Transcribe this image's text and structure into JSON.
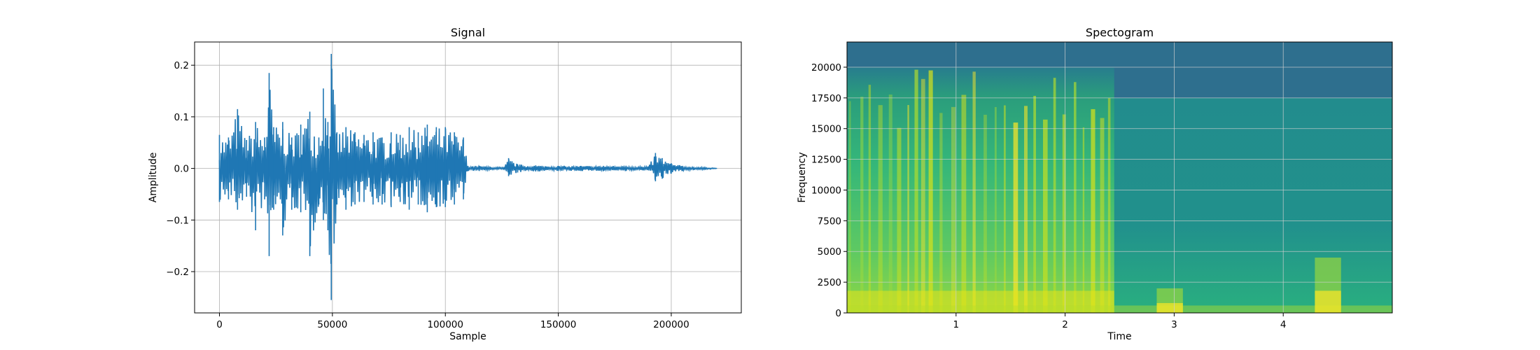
{
  "chart_data": [
    {
      "type": "line",
      "title": "Signal",
      "xlabel": "Sample",
      "ylabel": "Amplitude",
      "xlim": [
        -11000,
        231000
      ],
      "ylim": [
        -0.28,
        0.245
      ],
      "grid": true,
      "line_color": "#1f77b4",
      "x_ticks": [
        0,
        50000,
        100000,
        150000,
        200000
      ],
      "x_tick_labels": [
        "0",
        "50000",
        "100000",
        "150000",
        "200000"
      ],
      "y_ticks": [
        -0.2,
        -0.1,
        0.0,
        0.1,
        0.2
      ],
      "y_tick_labels": [
        "−0.2",
        "−0.1",
        "0.0",
        "0.1",
        "0.2"
      ],
      "envelope": {
        "x": [
          0,
          4000,
          8000,
          12000,
          16000,
          20000,
          22000,
          24000,
          28000,
          32000,
          36000,
          40000,
          44000,
          46000,
          48000,
          49500,
          52000,
          56000,
          60000,
          64000,
          68000,
          72000,
          76000,
          80000,
          84000,
          88000,
          92000,
          96000,
          100000,
          104000,
          108000,
          110000,
          115000,
          120000,
          126000,
          128000,
          132000,
          140000,
          150000,
          160000,
          170000,
          180000,
          190000,
          193000,
          196000,
          200000,
          205000,
          210000,
          215000,
          220000
        ],
        "max": [
          0.065,
          0.06,
          0.115,
          0.055,
          0.09,
          0.06,
          0.185,
          0.08,
          0.09,
          0.06,
          0.085,
          0.11,
          0.06,
          0.155,
          0.09,
          0.222,
          0.07,
          0.08,
          0.07,
          0.065,
          0.07,
          0.06,
          0.07,
          0.065,
          0.08,
          0.07,
          0.085,
          0.08,
          0.08,
          0.07,
          0.06,
          0.005,
          0.005,
          0.003,
          0.002,
          0.02,
          0.008,
          0.006,
          0.005,
          0.005,
          0.005,
          0.005,
          0.004,
          0.03,
          0.02,
          0.01,
          0.005,
          0.003,
          0.002,
          0.001
        ],
        "min": [
          -0.065,
          -0.06,
          -0.08,
          -0.055,
          -0.12,
          -0.06,
          -0.17,
          -0.08,
          -0.13,
          -0.08,
          -0.085,
          -0.17,
          -0.07,
          -0.1,
          -0.12,
          -0.255,
          -0.07,
          -0.08,
          -0.07,
          -0.065,
          -0.07,
          -0.07,
          -0.075,
          -0.065,
          -0.08,
          -0.07,
          -0.085,
          -0.075,
          -0.075,
          -0.07,
          -0.06,
          -0.005,
          -0.005,
          -0.003,
          -0.002,
          -0.015,
          -0.008,
          -0.006,
          -0.005,
          -0.005,
          -0.005,
          -0.005,
          -0.004,
          -0.025,
          -0.02,
          -0.01,
          -0.005,
          -0.003,
          -0.002,
          -0.001
        ]
      }
    },
    {
      "type": "heatmap",
      "title": "Spectogram",
      "xlabel": "Time",
      "ylabel": "Frequency",
      "xlim": [
        0,
        5
      ],
      "ylim": [
        0,
        22050
      ],
      "grid": true,
      "colormap": "viridis",
      "x_ticks": [
        1,
        2,
        3,
        4
      ],
      "x_tick_labels": [
        "1",
        "2",
        "3",
        "4"
      ],
      "y_ticks": [
        0,
        2500,
        5000,
        7500,
        10000,
        12500,
        15000,
        17500,
        20000
      ],
      "y_tick_labels": [
        "0",
        "2500",
        "5000",
        "7500",
        "10000",
        "12500",
        "15000",
        "17500",
        "20000"
      ],
      "speech_end_time": 2.45,
      "speech_max_frequency": 20000,
      "quiet_max_frequency": 17500,
      "events": [
        {
          "time": 2.9,
          "max_frequency": 2000
        },
        {
          "time": 4.35,
          "max_frequency": 4500
        }
      ]
    }
  ]
}
